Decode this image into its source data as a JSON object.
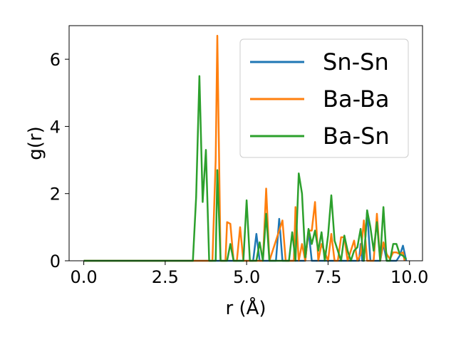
{
  "chart_data": {
    "type": "line",
    "title": "",
    "xlabel": "r (Å)",
    "ylabel": "g(r)",
    "xlim": [
      -0.45,
      10.4
    ],
    "ylim": [
      0,
      7.0
    ],
    "xticks": [
      0.0,
      2.5,
      5.0,
      7.5,
      10.0
    ],
    "xtick_labels": [
      "0.0",
      "2.5",
      "5.0",
      "7.5",
      "10.0"
    ],
    "yticks": [
      0,
      2,
      4,
      6
    ],
    "ytick_labels": [
      "0",
      "2",
      "4",
      "6"
    ],
    "grid": false,
    "legend_position": "top-right",
    "series": [
      {
        "name": "Sn-Sn",
        "color": "#1f77b4",
        "points": [
          [
            0,
            0
          ],
          [
            5.2,
            0
          ],
          [
            5.3,
            0.8
          ],
          [
            5.4,
            0
          ],
          [
            5.9,
            0
          ],
          [
            6.0,
            1.25
          ],
          [
            6.1,
            0
          ],
          [
            6.8,
            0
          ],
          [
            6.9,
            0.9
          ],
          [
            7.0,
            0
          ],
          [
            8.45,
            0
          ],
          [
            8.5,
            0.5
          ],
          [
            8.55,
            0
          ],
          [
            8.6,
            0
          ],
          [
            8.7,
            1.5
          ],
          [
            8.8,
            0
          ],
          [
            9.1,
            0
          ],
          [
            9.2,
            0.5
          ],
          [
            9.3,
            0
          ],
          [
            9.6,
            0
          ],
          [
            9.7,
            0.15
          ],
          [
            9.8,
            0.45
          ],
          [
            9.9,
            0
          ]
        ]
      },
      {
        "name": "Ba-Ba",
        "color": "#ff7f0e",
        "points": [
          [
            0,
            0
          ],
          [
            3.95,
            0
          ],
          [
            4.05,
            3.0
          ],
          [
            4.1,
            6.7
          ],
          [
            4.2,
            0
          ],
          [
            4.35,
            0
          ],
          [
            4.4,
            1.15
          ],
          [
            4.5,
            1.1
          ],
          [
            4.6,
            0
          ],
          [
            4.7,
            0
          ],
          [
            4.8,
            1.0
          ],
          [
            4.9,
            0
          ],
          [
            5.5,
            0
          ],
          [
            5.6,
            2.15
          ],
          [
            5.7,
            0
          ],
          [
            6.1,
            1.2
          ],
          [
            6.2,
            0
          ],
          [
            6.45,
            0
          ],
          [
            6.5,
            1.6
          ],
          [
            6.6,
            0
          ],
          [
            6.7,
            0.5
          ],
          [
            6.8,
            0
          ],
          [
            6.9,
            0.9
          ],
          [
            7.0,
            0.9
          ],
          [
            7.1,
            1.75
          ],
          [
            7.2,
            0
          ],
          [
            7.3,
            0.5
          ],
          [
            7.5,
            0
          ],
          [
            7.6,
            0.8
          ],
          [
            7.7,
            0
          ],
          [
            7.8,
            0
          ],
          [
            7.9,
            0.7
          ],
          [
            8.0,
            0.7
          ],
          [
            8.1,
            0
          ],
          [
            8.3,
            0.6
          ],
          [
            8.4,
            0
          ],
          [
            8.5,
            0.2
          ],
          [
            8.6,
            1.2
          ],
          [
            8.7,
            0
          ],
          [
            8.9,
            0
          ],
          [
            9.0,
            1.4
          ],
          [
            9.1,
            0
          ],
          [
            9.2,
            0.55
          ],
          [
            9.3,
            0.2
          ],
          [
            9.4,
            0.05
          ],
          [
            9.5,
            0.25
          ],
          [
            9.6,
            0.25
          ],
          [
            9.7,
            0.2
          ],
          [
            9.8,
            0.25
          ],
          [
            9.85,
            0
          ]
        ]
      },
      {
        "name": "Ba-Sn",
        "color": "#2ca02c",
        "points": [
          [
            0,
            0
          ],
          [
            3.35,
            0
          ],
          [
            3.45,
            1.9
          ],
          [
            3.55,
            5.5
          ],
          [
            3.65,
            1.75
          ],
          [
            3.75,
            3.3
          ],
          [
            3.85,
            0
          ],
          [
            4.05,
            0
          ],
          [
            4.1,
            2.7
          ],
          [
            4.2,
            0
          ],
          [
            4.4,
            0
          ],
          [
            4.5,
            0.5
          ],
          [
            4.6,
            0
          ],
          [
            4.9,
            0
          ],
          [
            5.0,
            1.8
          ],
          [
            5.1,
            0
          ],
          [
            5.3,
            0
          ],
          [
            5.4,
            0.55
          ],
          [
            5.5,
            0
          ],
          [
            5.6,
            1.4
          ],
          [
            5.7,
            0
          ],
          [
            6.3,
            0
          ],
          [
            6.4,
            0.85
          ],
          [
            6.5,
            0
          ],
          [
            6.6,
            2.6
          ],
          [
            6.7,
            2.0
          ],
          [
            6.8,
            0.1
          ],
          [
            6.9,
            0.95
          ],
          [
            7.0,
            0.5
          ],
          [
            7.1,
            0.9
          ],
          [
            7.2,
            0.3
          ],
          [
            7.3,
            0.85
          ],
          [
            7.4,
            0
          ],
          [
            7.5,
            0.75
          ],
          [
            7.6,
            1.95
          ],
          [
            7.7,
            0.6
          ],
          [
            7.8,
            0.3
          ],
          [
            7.9,
            0
          ],
          [
            8.0,
            0.75
          ],
          [
            8.1,
            0.3
          ],
          [
            8.2,
            0
          ],
          [
            8.3,
            0.3
          ],
          [
            8.4,
            0.4
          ],
          [
            8.5,
            0.95
          ],
          [
            8.6,
            0
          ],
          [
            8.7,
            1.5
          ],
          [
            8.8,
            1.0
          ],
          [
            8.9,
            0.3
          ],
          [
            9.0,
            1.15
          ],
          [
            9.1,
            0
          ],
          [
            9.2,
            1.6
          ],
          [
            9.3,
            0
          ],
          [
            9.4,
            0
          ],
          [
            9.5,
            0.5
          ],
          [
            9.6,
            0.5
          ],
          [
            9.7,
            0.2
          ],
          [
            9.8,
            0.15
          ],
          [
            9.9,
            0.05
          ]
        ]
      }
    ]
  }
}
